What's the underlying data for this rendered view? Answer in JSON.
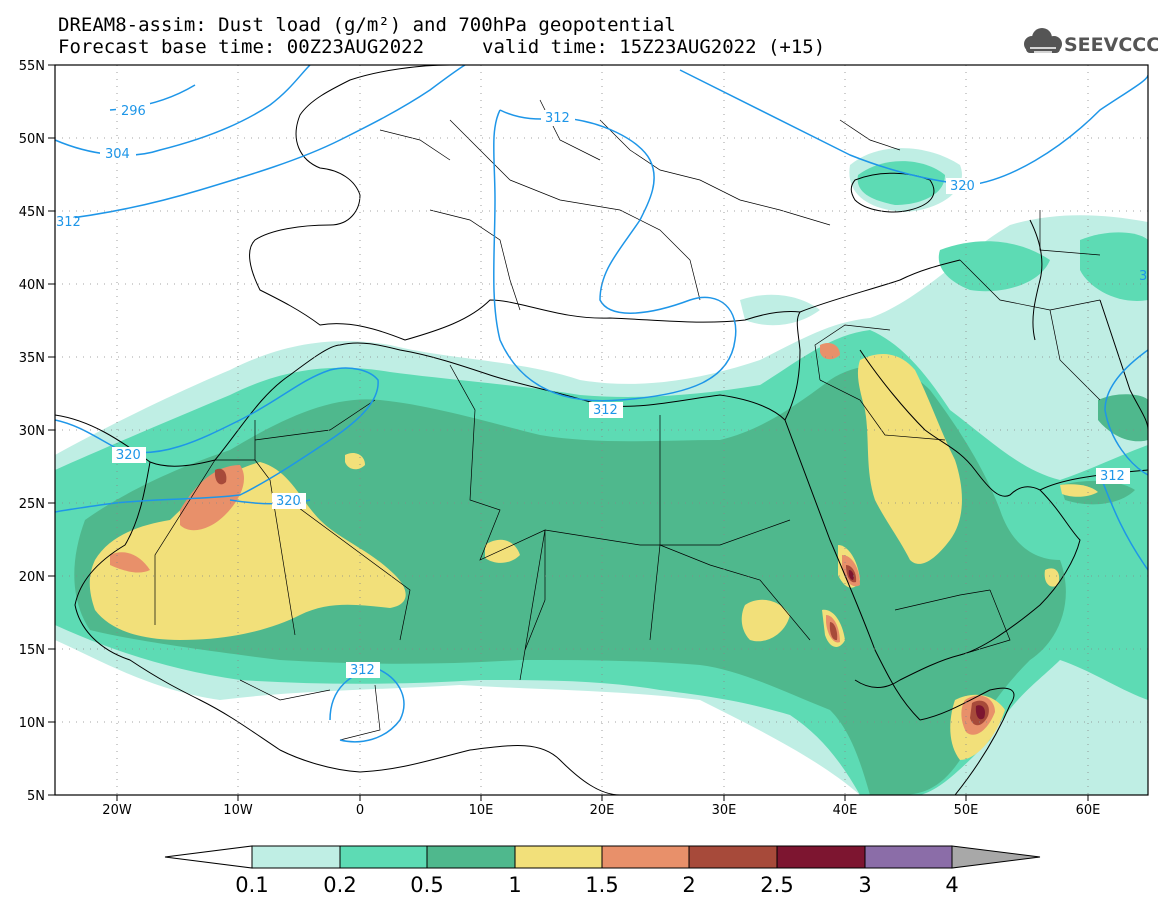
{
  "header": {
    "title_line1": "DREAM8-assim: Dust load (g/m²) and 700hPa geopotential",
    "title_line2": "Forecast base time: 00Z23AUG2022",
    "valid_time": "valid time: 15Z23AUG2022 (+15)",
    "logo_text": "SEEVCCC"
  },
  "map": {
    "lat_labels": [
      "55N",
      "50N",
      "45N",
      "40N",
      "35N",
      "30N",
      "25N",
      "20N",
      "15N",
      "10N",
      "5N"
    ],
    "lon_labels": [
      "20W",
      "10W",
      "0",
      "10E",
      "20E",
      "30E",
      "40E",
      "50E",
      "60E"
    ],
    "geopotential_labels": [
      "296",
      "304",
      "312",
      "312",
      "312",
      "320",
      "320",
      "312",
      "312",
      "320",
      "3"
    ]
  },
  "legend": {
    "ticks": [
      "0.1",
      "0.2",
      "0.5",
      "1",
      "1.5",
      "2",
      "2.5",
      "3",
      "4"
    ],
    "colors": [
      "#bfeee4",
      "#5ddbb4",
      "#4fb88d",
      "#f2e07a",
      "#e8906a",
      "#a74a3a",
      "#7d1530",
      "#8b6da8"
    ],
    "low_color": "#ffffff",
    "high_color": "#a8a8a8"
  }
}
